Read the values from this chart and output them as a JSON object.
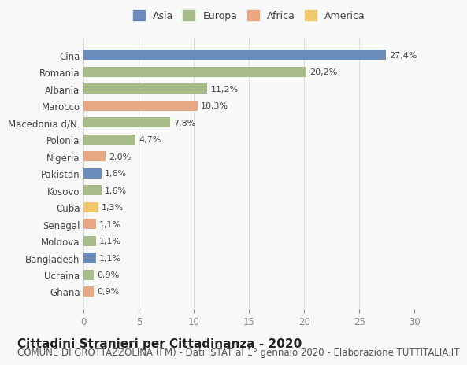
{
  "countries": [
    "Cina",
    "Romania",
    "Albania",
    "Marocco",
    "Macedonia d/N.",
    "Polonia",
    "Nigeria",
    "Pakistan",
    "Kosovo",
    "Cuba",
    "Senegal",
    "Moldova",
    "Bangladesh",
    "Ucraina",
    "Ghana"
  ],
  "values": [
    27.4,
    20.2,
    11.2,
    10.3,
    7.8,
    4.7,
    2.0,
    1.6,
    1.6,
    1.3,
    1.1,
    1.1,
    1.1,
    0.9,
    0.9
  ],
  "labels": [
    "27,4%",
    "20,2%",
    "11,2%",
    "10,3%",
    "7,8%",
    "4,7%",
    "2,0%",
    "1,6%",
    "1,6%",
    "1,3%",
    "1,1%",
    "1,1%",
    "1,1%",
    "0,9%",
    "0,9%"
  ],
  "continents": [
    "Asia",
    "Europa",
    "Europa",
    "Africa",
    "Europa",
    "Europa",
    "Africa",
    "Asia",
    "Europa",
    "America",
    "Africa",
    "Europa",
    "Asia",
    "Europa",
    "Africa"
  ],
  "colors": {
    "Asia": "#6b8cba",
    "Europa": "#a8bc8a",
    "Africa": "#e8a882",
    "America": "#f0c96e"
  },
  "legend_order": [
    "Asia",
    "Europa",
    "Africa",
    "America"
  ],
  "xlim": [
    0,
    30
  ],
  "xticks": [
    0,
    5,
    10,
    15,
    20,
    25,
    30
  ],
  "title": "Cittadini Stranieri per Cittadinanza - 2020",
  "subtitle": "COMUNE DI GROTTAZZOLINA (FM) - Dati ISTAT al 1° gennaio 2020 - Elaborazione TUTTITALIA.IT",
  "bg_color": "#f9f9f9",
  "grid_color": "#dddddd",
  "bar_height": 0.6,
  "title_fontsize": 11,
  "subtitle_fontsize": 8.5,
  "label_fontsize": 8,
  "tick_fontsize": 8.5,
  "legend_fontsize": 9
}
